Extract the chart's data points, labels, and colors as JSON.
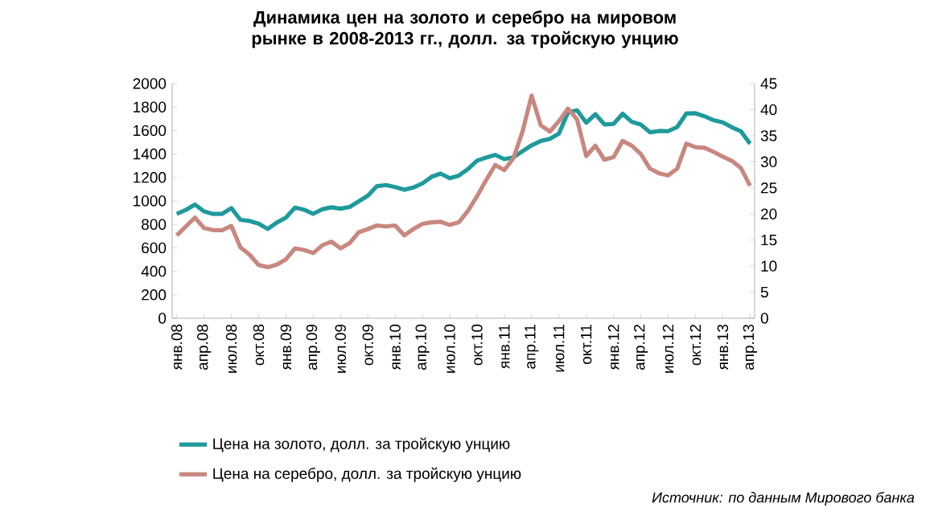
{
  "chart_data": {
    "type": "line",
    "title": "Динамика цен на золото и серебро  на мировом рынке в 2008-2013  гг., долл. за тройскую  унцию",
    "categories": [
      "янв.08",
      null,
      null,
      "апр.08",
      null,
      null,
      "июл.08",
      null,
      null,
      "окт.08",
      null,
      null,
      "янв.09",
      null,
      null,
      "апр.09",
      null,
      null,
      "июл.09",
      null,
      null,
      "окт.09",
      null,
      null,
      "янв.10",
      null,
      null,
      "апр.10",
      null,
      null,
      "июл.10",
      null,
      null,
      "окт.10",
      null,
      null,
      "янв.11",
      null,
      null,
      "апр.11",
      null,
      null,
      "июл.11",
      null,
      null,
      "окт.11",
      null,
      null,
      "янв.12",
      null,
      null,
      "апр.12",
      null,
      null,
      "июл.12",
      null,
      null,
      "окт.12",
      null,
      null,
      "янв.13",
      null,
      null,
      "апр.13"
    ],
    "series": [
      {
        "name": "Цена на золото, долл. за тройскую унцию",
        "color": "#1f9a9b",
        "values": [
          889,
          923,
          969,
          911,
          889,
          890,
          939,
          839,
          829,
          807,
          761,
          816,
          858,
          943,
          925,
          890,
          929,
          946,
          934,
          949,
          997,
          1044,
          1126,
          1135,
          1118,
          1095,
          1114,
          1149,
          1205,
          1233,
          1193,
          1216,
          1271,
          1343,
          1370,
          1392,
          1356,
          1372,
          1424,
          1474,
          1511,
          1529,
          1573,
          1756,
          1772,
          1666,
          1739,
          1652,
          1656,
          1743,
          1674,
          1650,
          1585,
          1596,
          1594,
          1630,
          1745,
          1747,
          1721,
          1688,
          1670,
          1628,
          1593,
          1487
        ]
      },
      {
        "name": "Цена на серебро, долл. за тройскую унцию",
        "color": "#c8877f",
        "axis": "y2",
        "values": [
          15.9,
          17.6,
          19.3,
          17.3,
          16.9,
          16.9,
          17.7,
          13.6,
          12.2,
          10.2,
          9.8,
          10.3,
          11.3,
          13.4,
          13.1,
          12.5,
          14.0,
          14.7,
          13.4,
          14.4,
          16.5,
          17.1,
          17.8,
          17.6,
          17.8,
          15.9,
          17.1,
          18.1,
          18.4,
          18.5,
          17.9,
          18.4,
          20.6,
          23.4,
          26.5,
          29.4,
          28.4,
          30.7,
          35.8,
          42.7,
          37.0,
          35.8,
          37.8,
          40.2,
          38.1,
          31.1,
          33.1,
          30.4,
          30.9,
          34.0,
          33.1,
          31.5,
          28.7,
          27.8,
          27.4,
          28.7,
          33.5,
          32.8,
          32.7,
          31.9,
          31.0,
          30.2,
          28.8,
          25.4
        ]
      }
    ],
    "ylim": [
      0,
      2000
    ],
    "yticks": [
      0,
      200,
      400,
      600,
      800,
      1000,
      1200,
      1400,
      1600,
      1800,
      2000
    ],
    "y2lim": [
      0,
      45
    ],
    "y2ticks": [
      0,
      5,
      10,
      15,
      20,
      25,
      30,
      35,
      40,
      45
    ],
    "legend": "bottom",
    "grid": false,
    "marker": "none",
    "line_style": "solid",
    "annotations": [
      "Источник: по данным Мирового банка"
    ]
  }
}
